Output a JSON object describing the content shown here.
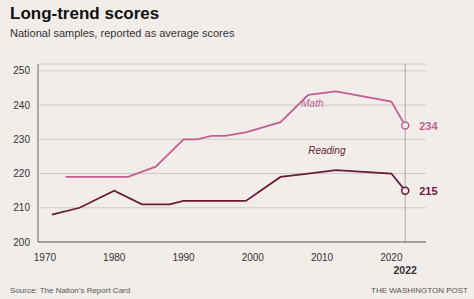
{
  "chart_data": {
    "type": "line",
    "title": "Long-trend scores",
    "subtitle": "National samples, reported as average scores",
    "source": "Source: The Nation’s Report Card",
    "credit": "THE WASHINGTON POST",
    "series": [
      {
        "name": "Math",
        "color": "#c06090",
        "marker": "circle",
        "x": [
          1973,
          1978,
          1982,
          1986,
          1990,
          1992,
          1994,
          1996,
          1999,
          2004,
          2008,
          2012,
          2020,
          2022
        ],
        "values": [
          219,
          219,
          219,
          222,
          230,
          230,
          231,
          231,
          232,
          235,
          243,
          244,
          241,
          234
        ]
      },
      {
        "name": "Reading",
        "color": "#6b1a3a",
        "marker": "circle",
        "x": [
          1971,
          1975,
          1980,
          1984,
          1988,
          1990,
          1992,
          1994,
          1996,
          1999,
          2004,
          2008,
          2012,
          2020,
          2022
        ],
        "values": [
          208,
          210,
          215,
          211,
          211,
          212,
          212,
          212,
          212,
          212,
          219,
          220,
          221,
          220,
          215
        ]
      }
    ],
    "annotations": [
      {
        "text": "Math",
        "x": 2007,
        "y": 239,
        "color": "#c06090",
        "position": "top"
      },
      {
        "text": "234",
        "x": 2022,
        "y": 234,
        "color": "#c06090",
        "position": "right"
      },
      {
        "text": "Reading",
        "x": 2008,
        "y": 225,
        "color": "#6b1a3a",
        "position": "top"
      },
      {
        "text": "215",
        "x": 2022,
        "y": 215,
        "color": "#6b1a3a",
        "position": "right"
      }
    ],
    "xlim": [
      1969,
      2025
    ],
    "xticks": [
      1970,
      1980,
      1990,
      2000,
      2010,
      2020,
      2022
    ],
    "ylim": [
      200,
      252
    ],
    "yticks": [
      200,
      210,
      220,
      230,
      240,
      250
    ],
    "grid": true,
    "color": "#f2ede9"
  }
}
